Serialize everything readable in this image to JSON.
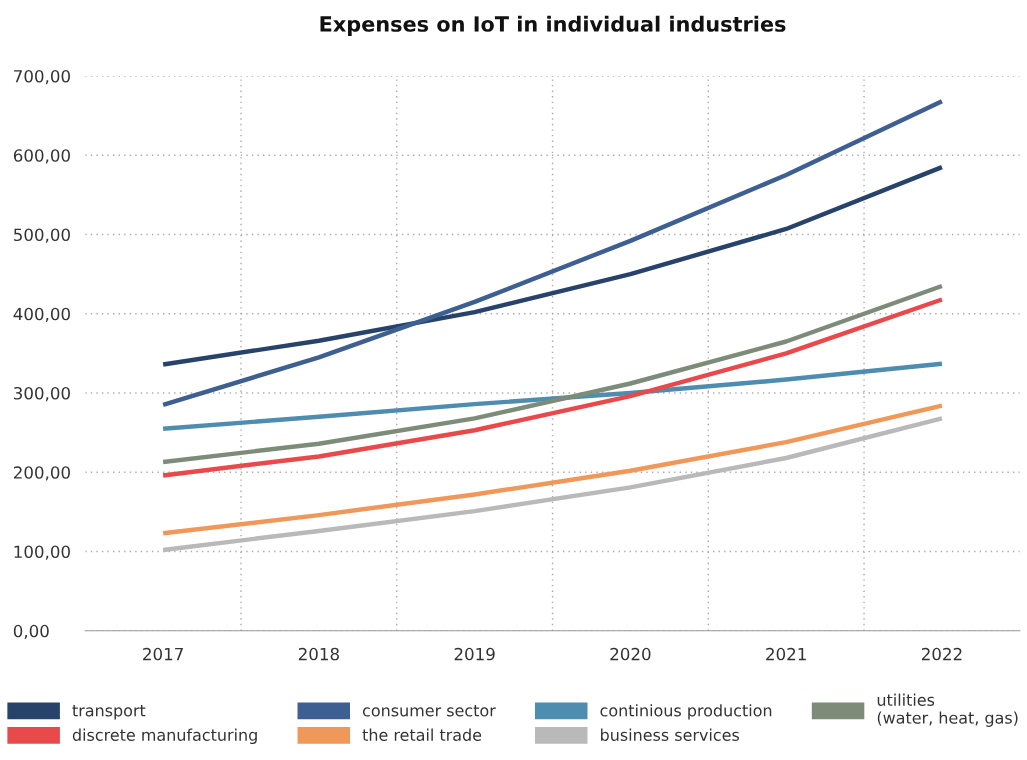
{
  "chart_data": {
    "type": "line",
    "title": "Expenses on IoT in individual industries",
    "categories": [
      "2017",
      "2018",
      "2019",
      "2020",
      "2021",
      "2022"
    ],
    "series": [
      {
        "name": "transport",
        "color": "#27436b",
        "values": [
          336,
          366,
          402,
          450,
          507,
          585
        ]
      },
      {
        "name": "consumer sector",
        "color": "#3e5f91",
        "values": [
          285,
          345,
          415,
          492,
          575,
          668
        ]
      },
      {
        "name": "continious production",
        "color": "#4e8db0",
        "values": [
          255,
          270,
          286,
          300,
          317,
          337
        ]
      },
      {
        "name": "utilities\n(water, heat, gas)",
        "color": "#7d8c78",
        "values": [
          213,
          236,
          268,
          312,
          365,
          435
        ]
      },
      {
        "name": "discrete manufacturing",
        "color": "#e8494a",
        "values": [
          196,
          220,
          253,
          296,
          350,
          418
        ]
      },
      {
        "name": "the retail trade",
        "color": "#f0985a",
        "values": [
          123,
          146,
          172,
          202,
          238,
          284
        ]
      },
      {
        "name": "business services",
        "color": "#b9b9b9",
        "values": [
          102,
          126,
          151,
          181,
          218,
          268
        ]
      }
    ],
    "ylim": [
      0,
      700
    ],
    "yticks": [
      {
        "value": 0,
        "label": "0,00"
      },
      {
        "value": 100,
        "label": "100,00"
      },
      {
        "value": 200,
        "label": "200,00"
      },
      {
        "value": 300,
        "label": "300,00"
      },
      {
        "value": 400,
        "label": "400,00"
      },
      {
        "value": 500,
        "label": "500,00"
      },
      {
        "value": 600,
        "label": "600,00"
      },
      {
        "value": 700,
        "label": "700,00"
      }
    ],
    "grid": true,
    "legend": "bottom",
    "marker": "none",
    "line_style": "solid"
  }
}
